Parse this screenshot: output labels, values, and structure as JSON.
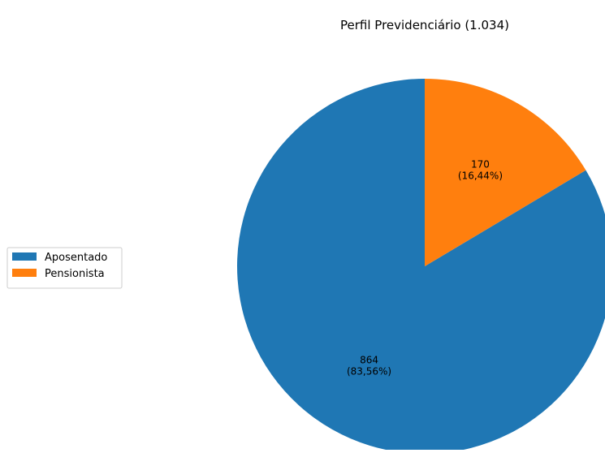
{
  "chart_data": {
    "type": "pie",
    "title": "Perfil Previdenciário (1.034)",
    "total": 1034,
    "slices": [
      {
        "label": "Aposentado",
        "value": 864,
        "percent_label": "(83,56%)",
        "value_label": "864",
        "color": "#1f77b4"
      },
      {
        "label": "Pensionista",
        "value": 170,
        "percent_label": "(16,44%)",
        "value_label": "170",
        "color": "#ff7f0e"
      }
    ],
    "start_angle_deg": 90,
    "direction": "counterclockwise",
    "legend_position": "left"
  }
}
